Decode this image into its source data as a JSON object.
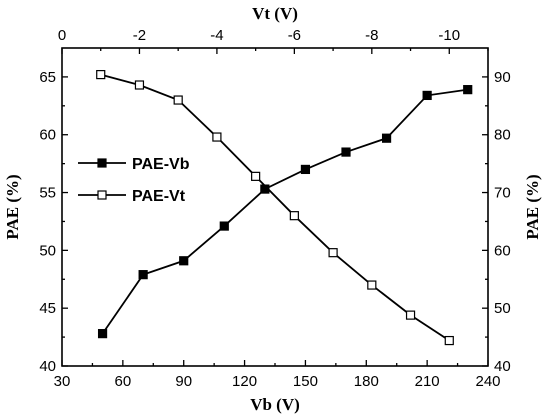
{
  "chart_data": {
    "type": "line",
    "xlabel_bottom": "Vb (V)",
    "xlabel_top": "Vt (V)",
    "ylabel_left": "PAE (%)",
    "ylabel_right": "PAE (%)",
    "x_bottom_lim": [
      30,
      240
    ],
    "x_bottom_ticks": [
      30,
      60,
      90,
      120,
      150,
      180,
      210,
      240
    ],
    "x_top_lim": [
      0,
      -11
    ],
    "x_top_ticks": [
      0,
      -2,
      -4,
      -6,
      -8,
      -10
    ],
    "y_left_lim": [
      40,
      67.5
    ],
    "y_left_ticks": [
      40,
      45,
      50,
      55,
      60,
      65
    ],
    "y_right_lim": [
      40,
      95
    ],
    "y_right_ticks": [
      40,
      50,
      60,
      70,
      80,
      90
    ],
    "grid": false,
    "legend_position": "middle-left",
    "series": [
      {
        "name": "PAE-Vb",
        "marker": "filled-square",
        "x_axis": "bottom",
        "y_axis": "left",
        "x": [
          50,
          70,
          90,
          110,
          130,
          150,
          170,
          190,
          210,
          230
        ],
        "y": [
          42.8,
          47.9,
          49.1,
          52.1,
          55.3,
          57.0,
          58.5,
          59.7,
          63.4,
          63.9
        ]
      },
      {
        "name": "PAE-Vt",
        "marker": "open-square",
        "x_axis": "top",
        "y_axis": "right",
        "x": [
          -1,
          -2,
          -3,
          -4,
          -5,
          -6,
          -7,
          -8,
          -9,
          -10
        ],
        "y": [
          90.4,
          88.6,
          86.0,
          79.6,
          72.8,
          66.0,
          59.6,
          54.0,
          48.8,
          44.4
        ]
      }
    ]
  }
}
